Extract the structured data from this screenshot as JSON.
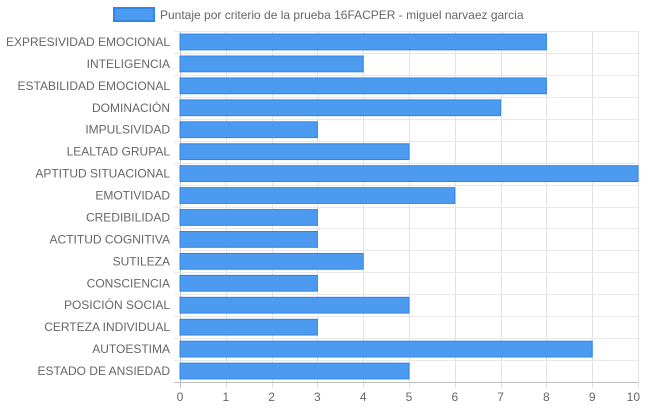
{
  "chart_data": {
    "type": "bar",
    "orientation": "horizontal",
    "title": "",
    "xlabel": "",
    "ylabel": "",
    "categories": [
      "EXPRESIVIDAD EMOCIONAL",
      "INTELIGENCIA",
      "ESTABILIDAD EMOCIONAL",
      "DOMINACIÓN",
      "IMPULSIVIDAD",
      "LEALTAD GRUPAL",
      "APTITUD SITUACIONAL",
      "EMOTIVIDAD",
      "CREDIBILIDAD",
      "ACTITUD COGNITIVA",
      "SUTILEZA",
      "CONSCIENCIA",
      "POSICIÓN SOCIAL",
      "CERTEZA INDIVIDUAL",
      "AUTOESTIMA",
      "ESTADO DE ANSIEDAD"
    ],
    "series": [
      {
        "name": "Puntaje por criterio de la prueba 16FACPER - miguel narvaez garcia",
        "values": [
          8,
          4,
          8,
          7,
          3,
          5,
          10,
          6,
          3,
          3,
          4,
          3,
          5,
          3,
          9,
          5
        ],
        "color": "#4d9bf0",
        "border_color": "#2f86e6"
      }
    ],
    "xlim": [
      0,
      10
    ],
    "xticks": [
      "0",
      "1",
      "2",
      "3",
      "4",
      "5",
      "6",
      "7",
      "8",
      "9",
      "10"
    ],
    "grid": true,
    "legend": "top-center"
  }
}
